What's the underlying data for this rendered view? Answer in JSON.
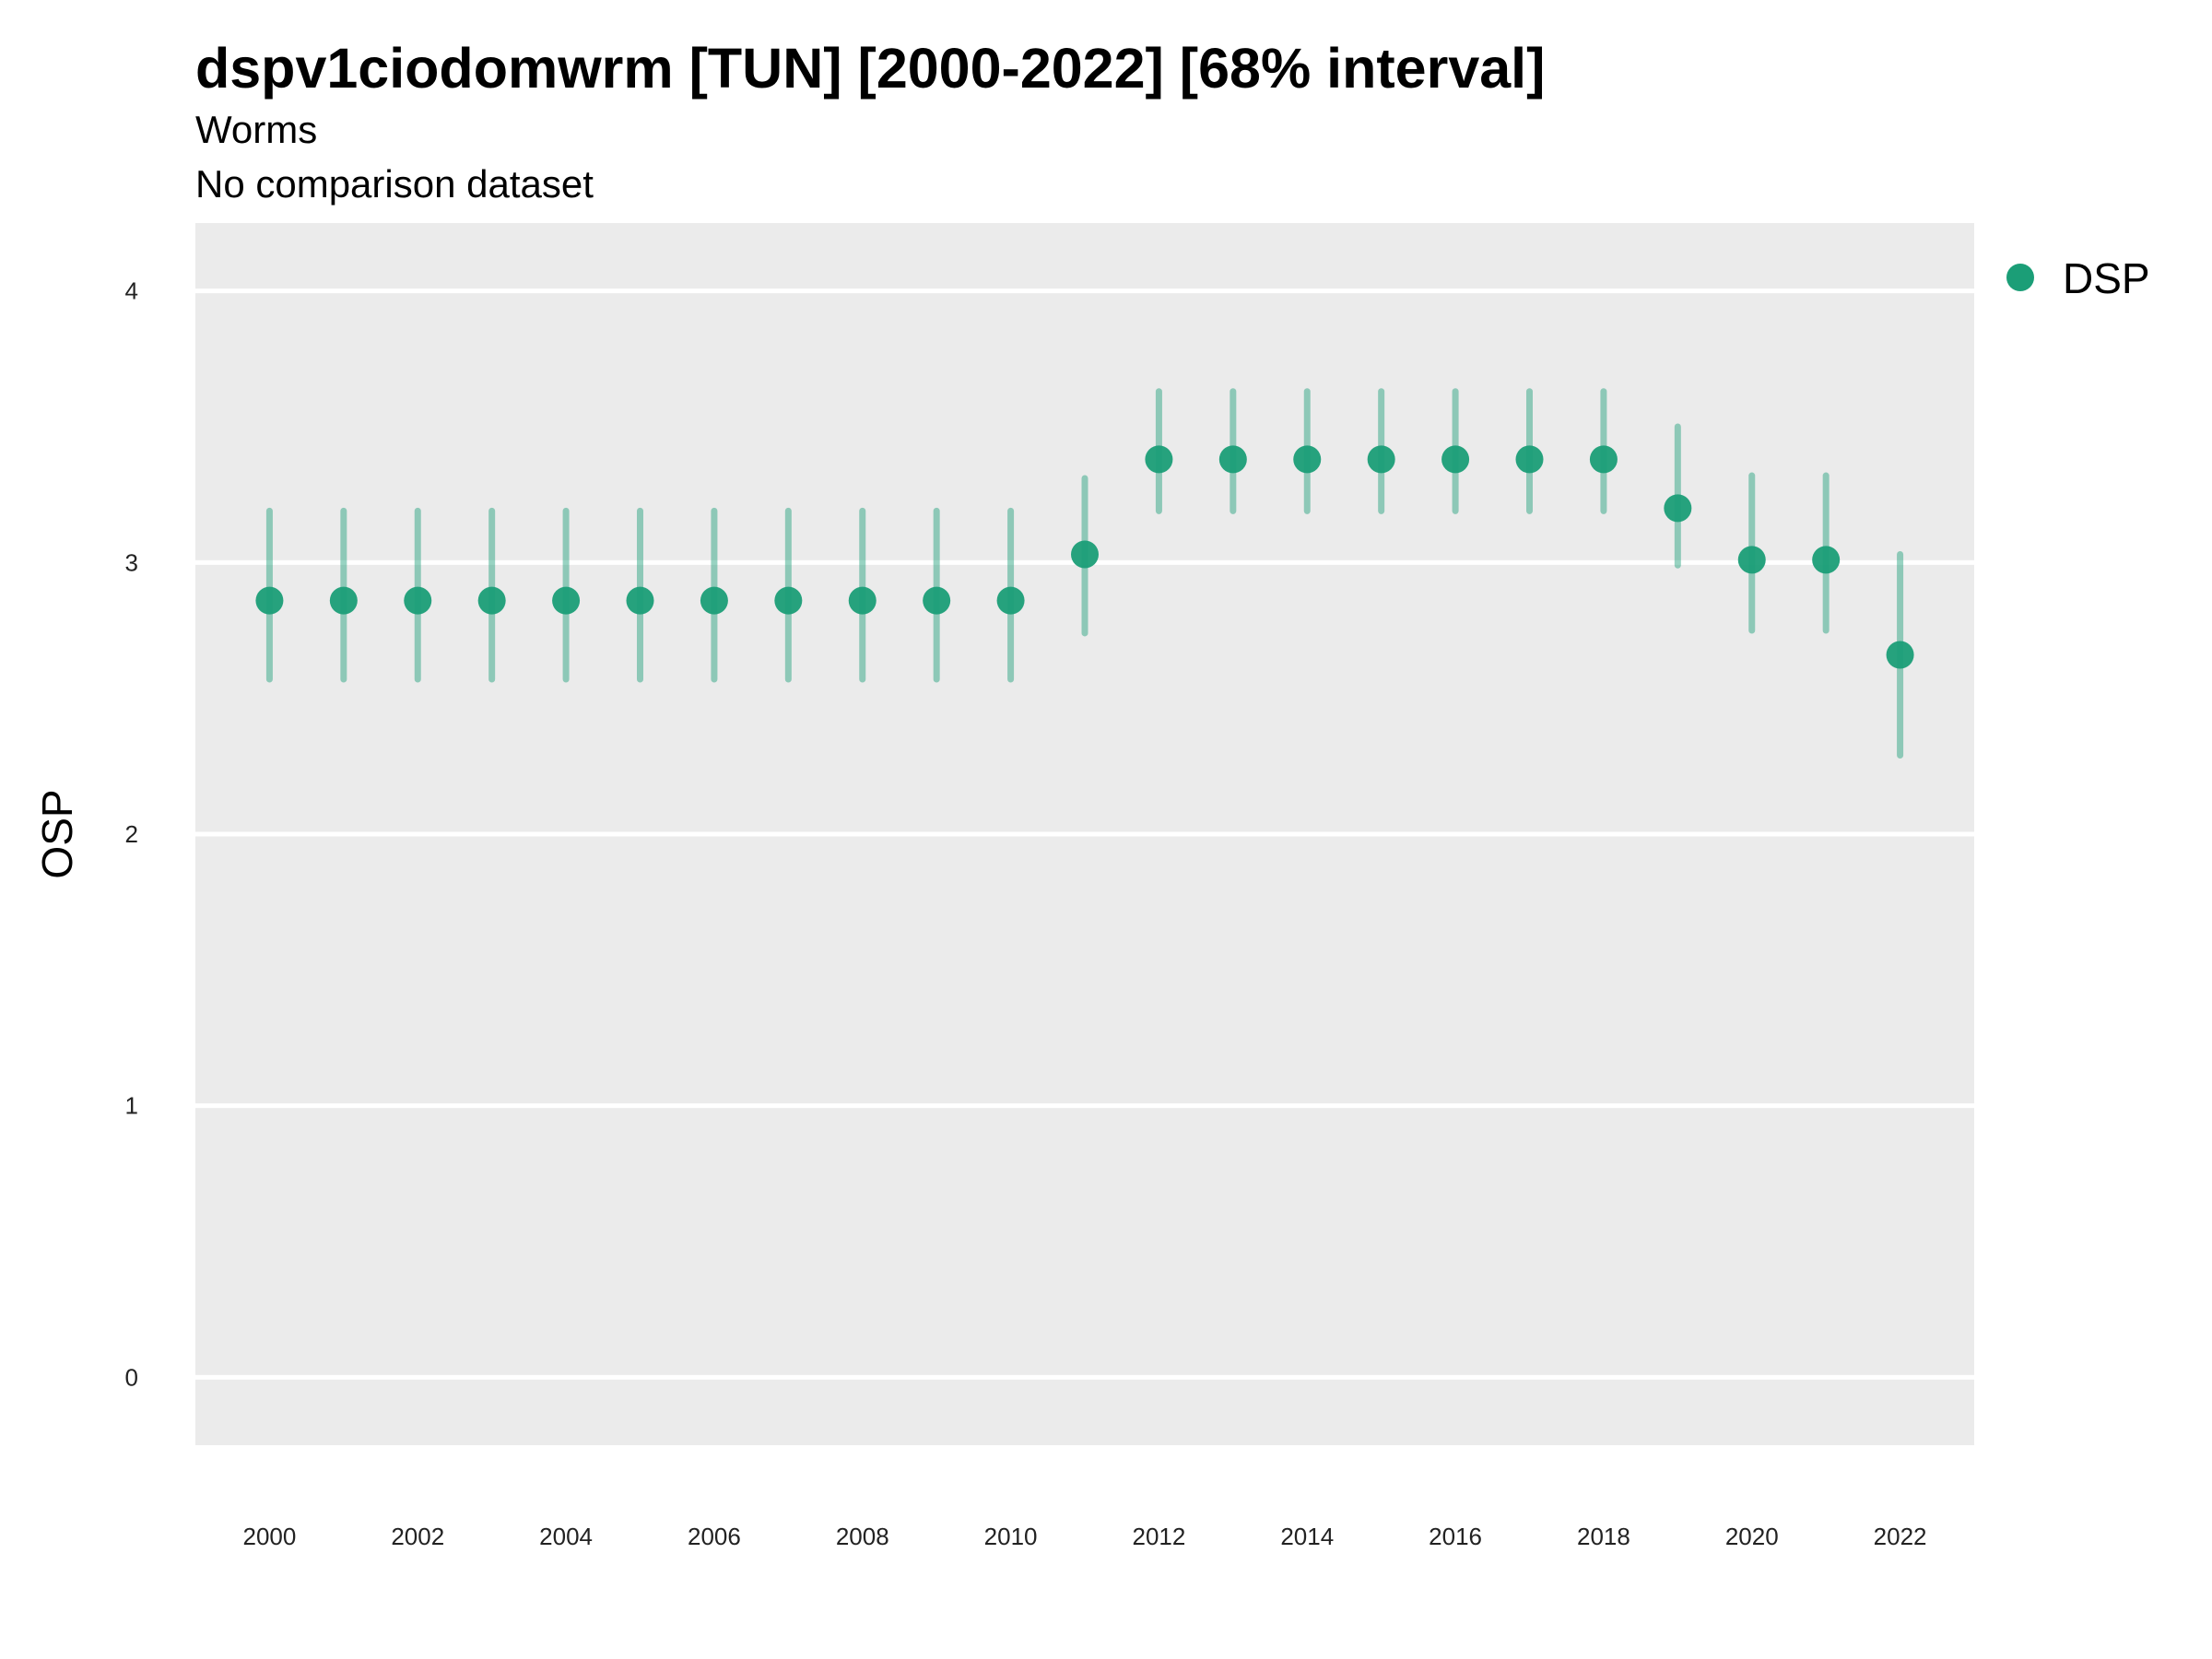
{
  "chart_data": {
    "type": "scatter",
    "title": "dspv1ciodomwrm [TUN] [2000-2022] [68% interval]",
    "subtitle": "Worms",
    "caption": "No comparison dataset",
    "xlabel": "",
    "ylabel": "OSP",
    "x_ticks": [
      2000,
      2002,
      2004,
      2006,
      2008,
      2010,
      2012,
      2014,
      2016,
      2018,
      2020,
      2022
    ],
    "y_ticks": [
      0,
      1,
      2,
      3,
      4
    ],
    "xlim": [
      1999.0,
      2023.0
    ],
    "ylim": [
      -0.25,
      4.25
    ],
    "grid": true,
    "legend_position": "right-top",
    "series": [
      {
        "name": "DSP",
        "color": "#1b9e77",
        "points": [
          {
            "x": 2000,
            "y": 2.86,
            "lo": 2.57,
            "hi": 3.19
          },
          {
            "x": 2001,
            "y": 2.86,
            "lo": 2.57,
            "hi": 3.19
          },
          {
            "x": 2002,
            "y": 2.86,
            "lo": 2.57,
            "hi": 3.19
          },
          {
            "x": 2003,
            "y": 2.86,
            "lo": 2.57,
            "hi": 3.19
          },
          {
            "x": 2004,
            "y": 2.86,
            "lo": 2.57,
            "hi": 3.19
          },
          {
            "x": 2005,
            "y": 2.86,
            "lo": 2.57,
            "hi": 3.19
          },
          {
            "x": 2006,
            "y": 2.86,
            "lo": 2.57,
            "hi": 3.19
          },
          {
            "x": 2007,
            "y": 2.86,
            "lo": 2.57,
            "hi": 3.19
          },
          {
            "x": 2008,
            "y": 2.86,
            "lo": 2.57,
            "hi": 3.19
          },
          {
            "x": 2009,
            "y": 2.86,
            "lo": 2.57,
            "hi": 3.19
          },
          {
            "x": 2010,
            "y": 2.86,
            "lo": 2.57,
            "hi": 3.19
          },
          {
            "x": 2011,
            "y": 3.03,
            "lo": 2.74,
            "hi": 3.31
          },
          {
            "x": 2012,
            "y": 3.38,
            "lo": 3.19,
            "hi": 3.63
          },
          {
            "x": 2013,
            "y": 3.38,
            "lo": 3.19,
            "hi": 3.63
          },
          {
            "x": 2014,
            "y": 3.38,
            "lo": 3.19,
            "hi": 3.63
          },
          {
            "x": 2015,
            "y": 3.38,
            "lo": 3.19,
            "hi": 3.63
          },
          {
            "x": 2016,
            "y": 3.38,
            "lo": 3.19,
            "hi": 3.63
          },
          {
            "x": 2017,
            "y": 3.38,
            "lo": 3.19,
            "hi": 3.63
          },
          {
            "x": 2018,
            "y": 3.38,
            "lo": 3.19,
            "hi": 3.63
          },
          {
            "x": 2019,
            "y": 3.2,
            "lo": 2.99,
            "hi": 3.5
          },
          {
            "x": 2020,
            "y": 3.01,
            "lo": 2.75,
            "hi": 3.32
          },
          {
            "x": 2021,
            "y": 3.01,
            "lo": 2.75,
            "hi": 3.32
          },
          {
            "x": 2022,
            "y": 2.66,
            "lo": 2.29,
            "hi": 3.03
          }
        ]
      }
    ]
  }
}
